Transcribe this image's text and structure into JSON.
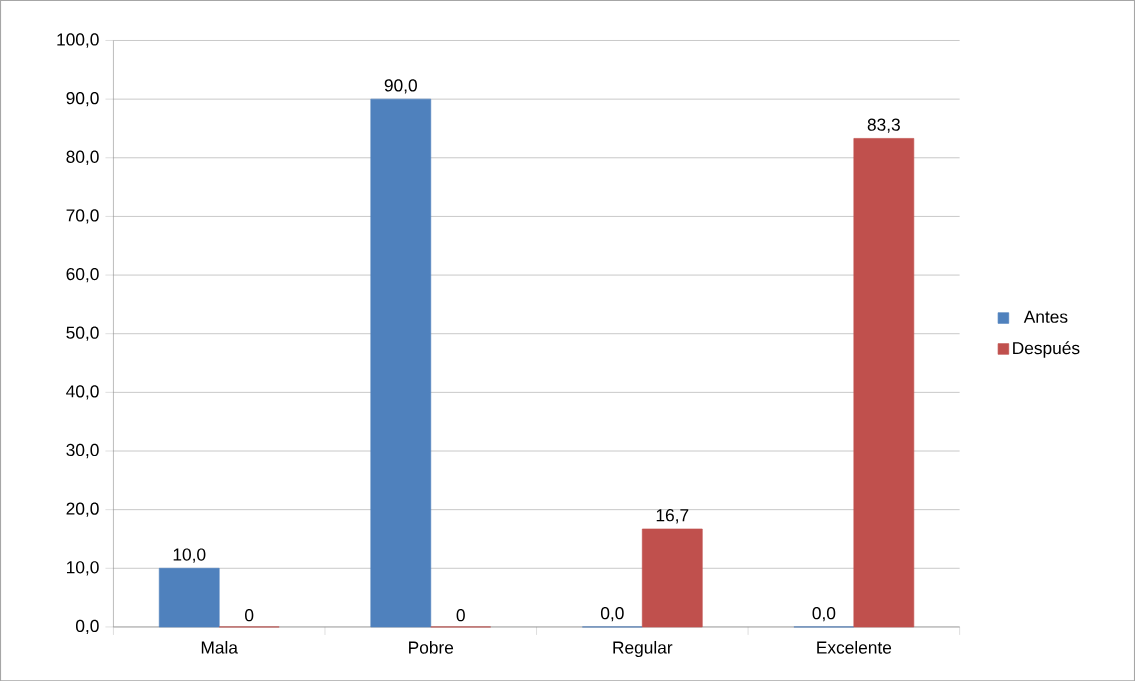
{
  "chart_data": {
    "type": "bar",
    "categories": [
      "Mala",
      "Pobre",
      "Regular",
      "Excelente"
    ],
    "series": [
      {
        "name": "Antes",
        "color": "#4f81bd",
        "values": [
          10.0,
          90.0,
          0.0,
          0.0
        ],
        "value_labels": [
          "10,0",
          "90,0",
          "0,0",
          "0,0"
        ]
      },
      {
        "name": "Después",
        "color": "#c0504d",
        "values": [
          0,
          0,
          16.7,
          83.3
        ],
        "value_labels": [
          "0",
          "0",
          "16,7",
          "83,3"
        ]
      }
    ],
    "ylim": [
      0,
      100
    ],
    "yticks": [
      {
        "value": 0,
        "label": "0,0"
      },
      {
        "value": 10,
        "label": "10,0"
      },
      {
        "value": 20,
        "label": "20,0"
      },
      {
        "value": 30,
        "label": "30,0"
      },
      {
        "value": 40,
        "label": "40,0"
      },
      {
        "value": 50,
        "label": "50,0"
      },
      {
        "value": 60,
        "label": "60,0"
      },
      {
        "value": 70,
        "label": "70,0"
      },
      {
        "value": 80,
        "label": "80,0"
      },
      {
        "value": 90,
        "label": "90,0"
      },
      {
        "value": 100,
        "label": "100,0"
      }
    ],
    "grid": "y",
    "legend": "right"
  }
}
